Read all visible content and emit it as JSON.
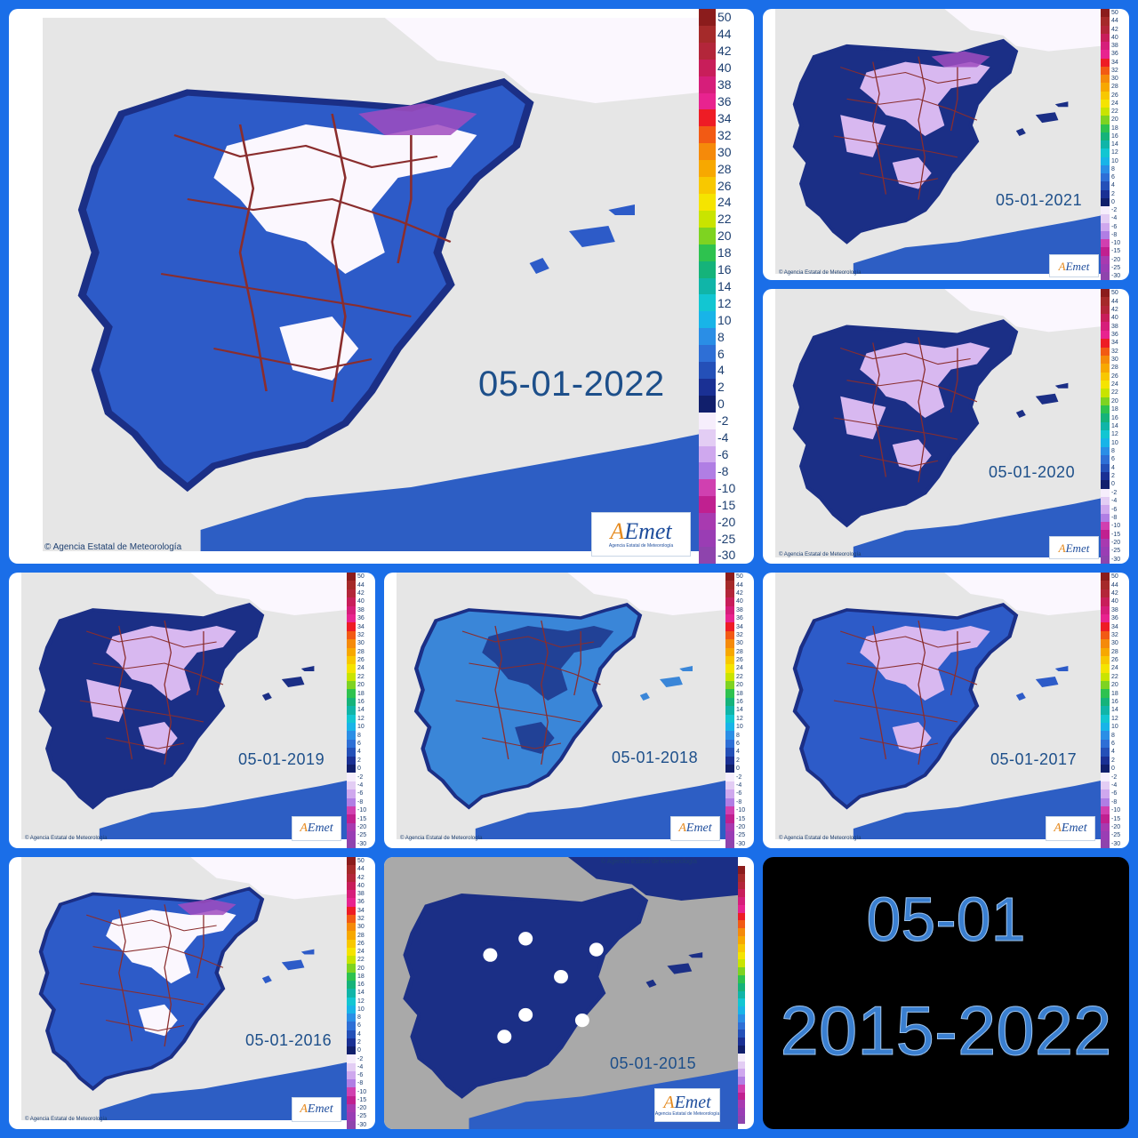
{
  "panels": [
    {
      "id": "p2022",
      "date": "05-01-2022",
      "credit": "Agencia Estatal de Meteorología",
      "legend_side": "right"
    },
    {
      "id": "p2021",
      "date": "05-01-2021",
      "credit": "Agencia Estatal de Meteorología",
      "legend_side": "right"
    },
    {
      "id": "p2020",
      "date": "05-01-2020",
      "credit": "Agencia Estatal de Meteorología",
      "legend_side": "right"
    },
    {
      "id": "p2019",
      "date": "05-01-2019",
      "credit": "Agencia Estatal de Meteorología",
      "legend_side": "right"
    },
    {
      "id": "p2018",
      "date": "05-01-2018",
      "credit": "Agencia Estatal de Meteorología",
      "legend_side": "right"
    },
    {
      "id": "p2017",
      "date": "05-01-2017",
      "credit": "Agencia Estatal de Meteorología",
      "legend_side": "right"
    },
    {
      "id": "p2016",
      "date": "05-01-2016",
      "credit": "Agencia Estatal de Meteorología",
      "legend_side": "right"
    },
    {
      "id": "p2015",
      "date": "05-01-2015",
      "credit": "Agencia Estatal de Meteorología",
      "legend_side": "right"
    }
  ],
  "logo": {
    "brand_a": "A",
    "brand_rest": "Emet",
    "subtitle": "Agencia Estatal de Meteorología"
  },
  "legend_scale": [
    {
      "label": "50",
      "color": "#8b1c1c"
    },
    {
      "label": "44",
      "color": "#a52a2a"
    },
    {
      "label": "42",
      "color": "#b3263a"
    },
    {
      "label": "40",
      "color": "#c81e5a"
    },
    {
      "label": "38",
      "color": "#d61e7a"
    },
    {
      "label": "36",
      "color": "#e8238f"
    },
    {
      "label": "34",
      "color": "#ee1c25"
    },
    {
      "label": "32",
      "color": "#f25a14"
    },
    {
      "label": "30",
      "color": "#f58a0a"
    },
    {
      "label": "28",
      "color": "#f7a800"
    },
    {
      "label": "26",
      "color": "#f8c800"
    },
    {
      "label": "24",
      "color": "#f5e400"
    },
    {
      "label": "22",
      "color": "#c9e400"
    },
    {
      "label": "20",
      "color": "#7ed321"
    },
    {
      "label": "18",
      "color": "#2ec24f"
    },
    {
      "label": "16",
      "color": "#15b37a"
    },
    {
      "label": "14",
      "color": "#10b5a8"
    },
    {
      "label": "12",
      "color": "#12c6d2"
    },
    {
      "label": "10",
      "color": "#18b4e8"
    },
    {
      "label": "8",
      "color": "#2a8ee6"
    },
    {
      "label": "6",
      "color": "#2e6fd6"
    },
    {
      "label": "4",
      "color": "#2450b8"
    },
    {
      "label": "2",
      "color": "#1a3094"
    },
    {
      "label": "0",
      "color": "#111f6c"
    },
    {
      "label": "-2",
      "color": "#f6eefc"
    },
    {
      "label": "-4",
      "color": "#e3cdf4"
    },
    {
      "label": "-6",
      "color": "#cfa8ee"
    },
    {
      "label": "-8",
      "color": "#b07ee4"
    },
    {
      "label": "-10",
      "color": "#d040b0"
    },
    {
      "label": "-15",
      "color": "#c02090"
    },
    {
      "label": "-20",
      "color": "#a83ab0"
    },
    {
      "label": "-25",
      "color": "#9a3db4"
    },
    {
      "label": "-30",
      "color": "#8e44ad"
    }
  ],
  "summary": {
    "line1": "05-01",
    "line2": "2015-2022"
  },
  "colors": {
    "sea": "#e6e6e6",
    "sea_2015": "#a9a9a9",
    "france": "#fbf0d2",
    "land_dark": "#1b2f86",
    "land_mid": "#2d5bc8",
    "land_light": "#3a86d8",
    "cold": "#fbf7fe",
    "cold_mid": "#d8b8f0",
    "cold_strong": "#a04cc0",
    "border": "#8a2d2d",
    "coast_sea": "#2d5ec4"
  }
}
